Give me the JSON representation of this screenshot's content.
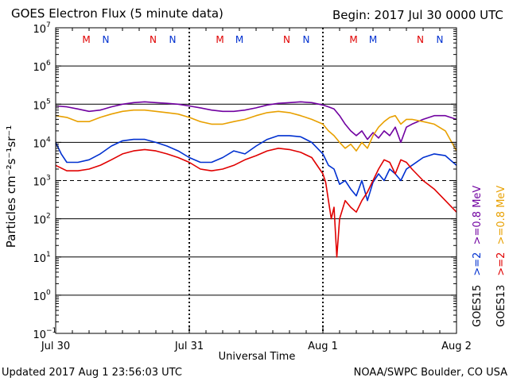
{
  "chart_data": {
    "type": "line",
    "title": "GOES Electron Flux (5 minute data)",
    "begin_label": "Begin: 2017 Jul 30 0000 UTC",
    "xlabel": "Universal Time",
    "ylabel": "Particles cm⁻²s⁻¹sr⁻¹",
    "updated_label": "Updated 2017 Aug  1 23:56:03 UTC",
    "source_label": "NOAA/SWPC Boulder, CO USA",
    "x_unit": "hours since 2017 Jul 30 0000 UTC",
    "xlim": [
      0,
      72
    ],
    "x_ticks": [
      {
        "x": 0,
        "label": "Jul 30"
      },
      {
        "x": 24,
        "label": "Jul 31"
      },
      {
        "x": 48,
        "label": "Aug 1"
      },
      {
        "x": 72,
        "label": "Aug 2"
      }
    ],
    "y_scale": "log",
    "ylim_exp": [
      -1,
      7
    ],
    "y_ticks": [
      {
        "exp": 7,
        "label": "7"
      },
      {
        "exp": 6,
        "label": "6"
      },
      {
        "exp": 5,
        "label": "5"
      },
      {
        "exp": 4,
        "label": "4"
      },
      {
        "exp": 3,
        "label": "3"
      },
      {
        "exp": 2,
        "label": "2"
      },
      {
        "exp": 1,
        "label": "1"
      },
      {
        "exp": 0,
        "label": "0"
      },
      {
        "exp": -1,
        "label": "−1"
      }
    ],
    "tick_base": "10",
    "gridlines_exp": [
      6,
      5,
      4,
      2,
      1,
      0
    ],
    "threshold_exp": 3,
    "legend": {
      "right_column": [
        {
          "text": ">=0.8 MeV",
          "color": "#e8a000"
        },
        {
          "text": ">=2",
          "color": "#e00000"
        },
        {
          "text": "GOES13",
          "color": "#000000"
        }
      ],
      "left_column": [
        {
          "text": ">=0.8 MeV",
          "color": "#7000a0"
        },
        {
          "text": ">=2",
          "color": "#0030d0"
        },
        {
          "text": "GOES15",
          "color": "#000000"
        }
      ]
    },
    "mn_markers": [
      {
        "x": 5.5,
        "label": "M",
        "color": "#e00000"
      },
      {
        "x": 9.0,
        "label": "N",
        "color": "#0030d0"
      },
      {
        "x": 17.5,
        "label": "N",
        "color": "#e00000"
      },
      {
        "x": 21.0,
        "label": "N",
        "color": "#0030d0"
      },
      {
        "x": 29.5,
        "label": "M",
        "color": "#e00000"
      },
      {
        "x": 33.0,
        "label": "M",
        "color": "#0030d0"
      },
      {
        "x": 41.5,
        "label": "N",
        "color": "#e00000"
      },
      {
        "x": 45.0,
        "label": "N",
        "color": "#0030d0"
      },
      {
        "x": 53.5,
        "label": "M",
        "color": "#e00000"
      },
      {
        "x": 57.0,
        "label": "M",
        "color": "#0030d0"
      },
      {
        "x": 65.5,
        "label": "N",
        "color": "#e00000"
      },
      {
        "x": 69.0,
        "label": "N",
        "color": "#0030d0"
      }
    ],
    "series": [
      {
        "color": "#7000a0",
        "x": [
          0,
          2,
          4,
          6,
          8,
          10,
          12,
          14,
          16,
          18,
          20,
          22,
          24,
          26,
          28,
          30,
          32,
          34,
          36,
          38,
          40,
          42,
          44,
          46,
          48,
          49,
          50,
          51,
          52,
          53,
          54,
          55,
          56,
          57,
          58,
          59,
          60,
          61,
          62,
          63,
          64,
          66,
          68,
          70,
          72
        ],
        "y": [
          90000.0,
          85000.0,
          75000.0,
          65000.0,
          70000.0,
          85000.0,
          100000.0,
          110000.0,
          115000.0,
          110000.0,
          105000.0,
          100000.0,
          90000.0,
          80000.0,
          70000.0,
          65000.0,
          65000.0,
          70000.0,
          80000.0,
          95000.0,
          105000.0,
          110000.0,
          115000.0,
          110000.0,
          95000.0,
          85000.0,
          75000.0,
          50000.0,
          30000.0,
          20000.0,
          15000.0,
          20000.0,
          12000.0,
          18000.0,
          13000.0,
          20000.0,
          15000.0,
          25000.0,
          10000.0,
          25000.0,
          30000.0,
          40000.0,
          50000.0,
          50000.0,
          40000.0
        ]
      },
      {
        "color": "#e8a000",
        "x": [
          0,
          2,
          4,
          6,
          8,
          10,
          12,
          14,
          16,
          18,
          20,
          22,
          24,
          26,
          28,
          30,
          32,
          34,
          36,
          38,
          40,
          42,
          44,
          46,
          48,
          49,
          50,
          51,
          52,
          53,
          54,
          55,
          56,
          57,
          58,
          59,
          60,
          61,
          62,
          63,
          64,
          66,
          68,
          70,
          72
        ],
        "y": [
          50000.0,
          45000.0,
          35000.0,
          35000.0,
          45000.0,
          55000.0,
          65000.0,
          70000.0,
          70000.0,
          65000.0,
          60000.0,
          55000.0,
          45000.0,
          35000.0,
          30000.0,
          30000.0,
          35000.0,
          40000.0,
          50000.0,
          60000.0,
          65000.0,
          60000.0,
          50000.0,
          40000.0,
          30000.0,
          20000.0,
          15000.0,
          10000.0,
          7000.0,
          9000.0,
          6000.0,
          10000.0,
          7000.0,
          15000.0,
          25000.0,
          35000.0,
          45000.0,
          50000.0,
          30000.0,
          40000.0,
          40000.0,
          35000.0,
          30000.0,
          20000.0,
          6000.0
        ]
      },
      {
        "color": "#0030d0",
        "x": [
          0,
          1,
          2,
          4,
          6,
          8,
          10,
          12,
          14,
          16,
          18,
          20,
          22,
          24,
          26,
          28,
          30,
          32,
          34,
          36,
          38,
          40,
          42,
          44,
          46,
          48,
          49,
          50,
          51,
          52,
          53,
          54,
          55,
          56,
          57,
          58,
          59,
          60,
          61,
          62,
          63,
          64,
          66,
          68,
          70,
          72
        ],
        "y": [
          10000.0,
          5000.0,
          3000.0,
          3000.0,
          3500.0,
          5000.0,
          8000.0,
          11000.0,
          12000.0,
          12000.0,
          10000.0,
          8000.0,
          6000.0,
          4000.0,
          3000.0,
          3000.0,
          4000.0,
          6000.0,
          5000.0,
          8000.0,
          12000.0,
          15000.0,
          15000.0,
          14000.0,
          10000.0,
          5000.0,
          2500.0,
          2000.0,
          800.0,
          1000.0,
          600.0,
          400.0,
          1000.0,
          300.0,
          900.0,
          1500.0,
          1000.0,
          2000.0,
          1500.0,
          1000.0,
          2000.0,
          2500.0,
          4000.0,
          5000.0,
          4500.0,
          2500.0
        ]
      },
      {
        "color": "#e00000",
        "x": [
          0,
          2,
          4,
          6,
          8,
          10,
          12,
          14,
          16,
          18,
          20,
          22,
          24,
          26,
          28,
          30,
          32,
          34,
          36,
          38,
          40,
          42,
          44,
          46,
          48,
          48.5,
          49,
          49.5,
          50,
          50.5,
          51,
          52,
          53,
          54,
          55,
          56,
          57,
          58,
          59,
          60,
          61,
          62,
          63,
          64,
          66,
          68,
          70,
          72
        ],
        "y": [
          2500.0,
          1800.0,
          1800.0,
          2000.0,
          2500.0,
          3500.0,
          5000.0,
          6000.0,
          6500.0,
          6000.0,
          5000.0,
          4000.0,
          3000.0,
          2000.0,
          1800.0,
          2000.0,
          2500.0,
          3500.0,
          4500.0,
          6000.0,
          7000.0,
          6500.0,
          5500.0,
          4000.0,
          1500.0,
          900.0,
          300.0,
          100.0,
          200.0,
          10.0,
          100.0,
          300.0,
          200.0,
          150.0,
          300.0,
          500.0,
          1000.0,
          2000.0,
          3500.0,
          3000.0,
          1500.0,
          3500.0,
          3000.0,
          2000.0,
          1000.0,
          600.0,
          300.0,
          150.0
        ]
      }
    ]
  }
}
